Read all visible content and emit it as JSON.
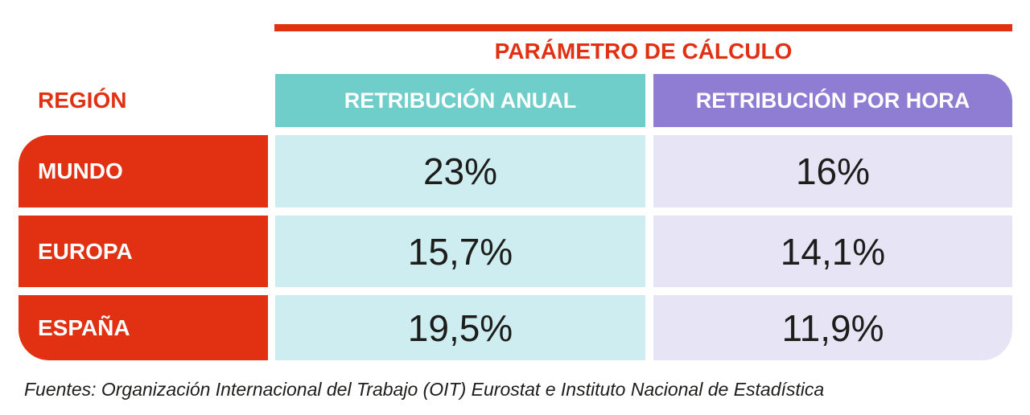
{
  "table": {
    "title": "PARÁMETRO DE CÁLCULO",
    "row_header_label": "REGIÓN",
    "col_headers": [
      "RETRIBUCIÓN ANUAL",
      "RETRIBUCIÓN POR HORA"
    ],
    "rows": [
      {
        "region": "MUNDO",
        "anual": "23%",
        "hora": "16%"
      },
      {
        "region": "EUROPA",
        "anual": "15,7%",
        "hora": "14,1%"
      },
      {
        "region": "ESPAÑA",
        "anual": "19,5%",
        "hora": "11,9%"
      }
    ]
  },
  "footer": {
    "source_text": "Fuentes: Organización Internacional del Trabajo (OIT) Eurostat e Instituto Nacional de Estadística"
  },
  "colors": {
    "accent_red": "#e23012",
    "teal_header": "#6fcdca",
    "teal_cell": "#cdedf0",
    "purple_header": "#8f7cd3",
    "purple_cell": "#e7e4f5",
    "header_text": "#ffffff",
    "value_text": "#1d1d1b"
  },
  "chart_data": {
    "type": "table",
    "title": "PARÁMETRO DE CÁLCULO",
    "row_header": "REGIÓN",
    "columns": [
      "RETRIBUCIÓN ANUAL",
      "RETRIBUCIÓN POR HORA"
    ],
    "categories": [
      "MUNDO",
      "EUROPA",
      "ESPAÑA"
    ],
    "series": [
      {
        "name": "RETRIBUCIÓN ANUAL",
        "values": [
          23,
          15.7,
          19.5
        ],
        "display": [
          "23%",
          "15,7%",
          "19,5%"
        ]
      },
      {
        "name": "RETRIBUCIÓN POR HORA",
        "values": [
          16,
          14.1,
          11.9
        ],
        "display": [
          "16%",
          "14,1%",
          "11,9%"
        ]
      }
    ],
    "unit": "percent",
    "source": "Fuentes: Organización Internacional del Trabajo (OIT) Eurostat e Instituto Nacional de Estadística"
  }
}
